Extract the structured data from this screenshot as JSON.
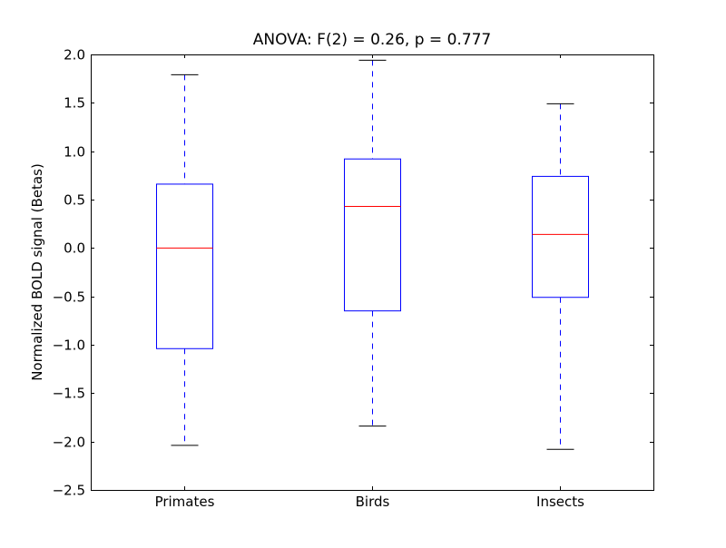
{
  "chart_data": {
    "type": "boxplot",
    "title": "ANOVA: F(2) = 0.26, p = 0.777",
    "xlabel": "",
    "ylabel": "Normalized BOLD signal (Betas)",
    "ylim": [
      -2.5,
      2.0
    ],
    "yticks": [
      "2.0",
      "1.5",
      "1.0",
      "0.5",
      "0.0",
      "−0.5",
      "−1.0",
      "−1.5",
      "−2.0",
      "−2.5"
    ],
    "ytick_values": [
      2.0,
      1.5,
      1.0,
      0.5,
      0.0,
      -0.5,
      -1.0,
      -1.5,
      -2.0,
      -2.5
    ],
    "categories": [
      "Primates",
      "Birds",
      "Insects"
    ],
    "boxes": [
      {
        "whisker_low": -2.04,
        "q1": -1.04,
        "median": 0.0,
        "q3": 0.66,
        "whisker_high": 1.79
      },
      {
        "whisker_low": -1.84,
        "q1": -0.65,
        "median": 0.43,
        "q3": 0.92,
        "whisker_high": 1.94
      },
      {
        "whisker_low": -2.08,
        "q1": -0.51,
        "median": 0.14,
        "q3": 0.74,
        "whisker_high": 1.49
      }
    ],
    "grid": false,
    "colors": {
      "box": "#0000ff",
      "median": "#ff0000",
      "whisker": "#0000ff",
      "cap": "#000000"
    }
  }
}
